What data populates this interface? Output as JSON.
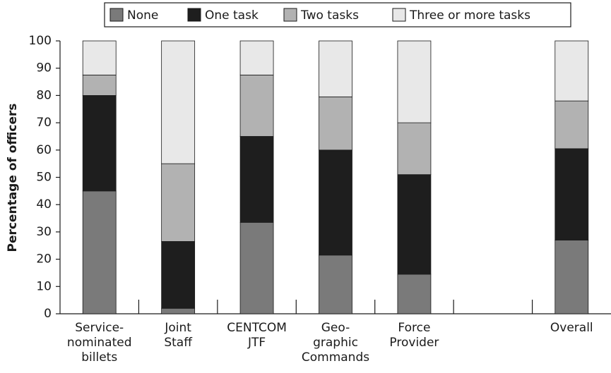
{
  "chart_data": {
    "type": "stacked_bar",
    "y_label": "Percentage of officers",
    "categories": [
      [
        "Service-",
        "nominated",
        "billets"
      ],
      [
        "Joint",
        "Staff"
      ],
      [
        "CENTCOM",
        "JTF"
      ],
      [
        "Geo-",
        "graphic",
        "Commands"
      ],
      [
        "Force",
        "Provider"
      ],
      null,
      [
        "Overall"
      ]
    ],
    "series": [
      {
        "name": "None",
        "color": "#7a7a7a",
        "values": [
          45,
          2,
          33.5,
          21.5,
          14.5,
          null,
          27
        ]
      },
      {
        "name": "One task",
        "color": "#1e1e1e",
        "values": [
          35,
          24.5,
          31.5,
          38.5,
          36.5,
          null,
          33.5
        ]
      },
      {
        "name": "Two tasks",
        "color": "#b2b2b2",
        "values": [
          7.5,
          28.5,
          22.5,
          19.5,
          19,
          null,
          17.5
        ]
      },
      {
        "name": "Three or more tasks",
        "color": "#e8e8e8",
        "values": [
          12.5,
          45,
          12.5,
          20.5,
          30,
          null,
          22
        ]
      }
    ],
    "ylim": [
      0,
      100
    ],
    "yticks": [
      0,
      10,
      20,
      30,
      40,
      50,
      60,
      70,
      80,
      90,
      100
    ],
    "legend": "top"
  }
}
